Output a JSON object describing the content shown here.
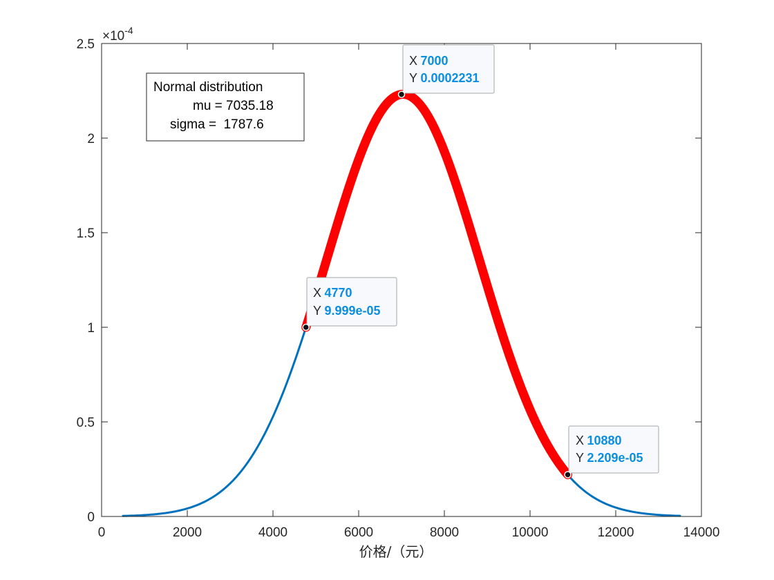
{
  "chart_data": {
    "type": "line",
    "xlabel": "价格/（元）",
    "ylabel": "",
    "xlim": [
      0,
      14000
    ],
    "ylim": [
      0,
      0.00025
    ],
    "y_multiplier_label": "×10",
    "y_multiplier_exponent": "-4",
    "x_ticks": [
      0,
      2000,
      4000,
      6000,
      8000,
      10000,
      12000,
      14000
    ],
    "x_tick_labels": [
      "0",
      "2000",
      "4000",
      "6000",
      "8000",
      "10000",
      "12000",
      "14000"
    ],
    "y_ticks": [
      0,
      5e-05,
      0.0001,
      0.00015,
      0.0002,
      0.00025
    ],
    "y_tick_labels": [
      "0",
      "0.5",
      "1",
      "1.5",
      "2",
      "2.5"
    ],
    "grid": false,
    "series": [
      {
        "role": "full-curve",
        "color": "#0072bd",
        "x_range": [
          500,
          13500
        ],
        "mu": 7035.18,
        "sigma": 1787.6
      },
      {
        "role": "highlighted-interval",
        "color": "#ff0000",
        "x_range": [
          4770,
          10880
        ],
        "mu": 7035.18,
        "sigma": 1787.6
      }
    ],
    "legend": {
      "placement": "top-left",
      "lines": [
        "Normal distribution",
        "mu = 7035.18",
        "sigma =  1787.6"
      ]
    },
    "datatips": [
      {
        "x": 4770,
        "y": 9.999e-05,
        "x_text": "4770",
        "y_text": "9.999e-05"
      },
      {
        "x": 7000,
        "y": 0.0002231,
        "x_text": "7000",
        "y_text": "0.0002231"
      },
      {
        "x": 10880,
        "y": 2.209e-05,
        "x_text": "10880",
        "y_text": "2.209e-05"
      }
    ],
    "datatip_keys": {
      "x": "X",
      "y": "Y"
    }
  }
}
